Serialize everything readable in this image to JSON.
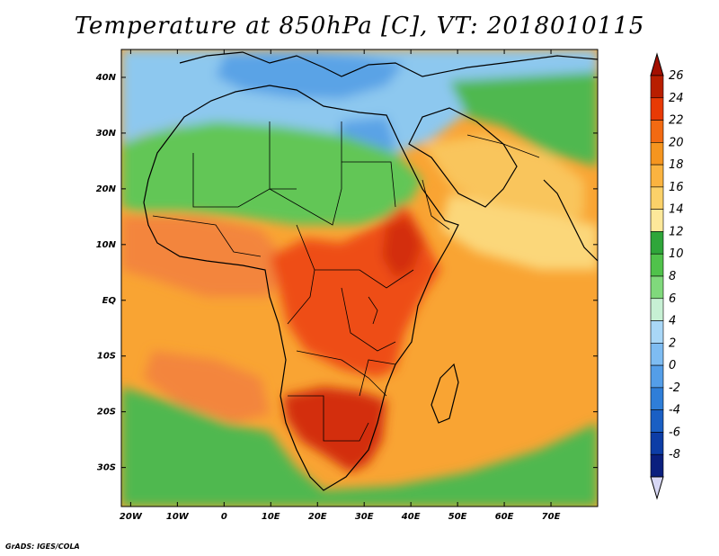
{
  "title": "Temperature at 850hPa [C], VT: 2018010115",
  "footer": "GrADS: IGES/COLA",
  "map": {
    "variable": "Temperature at 850hPa",
    "units": "C",
    "valid_time": "2018010115",
    "lon_range": [
      -22,
      80
    ],
    "lat_range": [
      -37,
      45
    ],
    "lon_ticks": [
      "20W",
      "10W",
      "0",
      "10E",
      "20E",
      "30E",
      "40E",
      "50E",
      "60E",
      "70E"
    ],
    "lon_tick_values": [
      -20,
      -10,
      0,
      10,
      20,
      30,
      40,
      50,
      60,
      70
    ],
    "lat_ticks": [
      "40N",
      "30N",
      "20N",
      "10N",
      "EQ",
      "10S",
      "20S",
      "30S"
    ],
    "lat_tick_values": [
      40,
      30,
      20,
      10,
      0,
      -10,
      -20,
      -30
    ]
  },
  "colorbar": {
    "levels": [
      "26",
      "24",
      "22",
      "20",
      "18",
      "16",
      "14",
      "12",
      "10",
      "8",
      "6",
      "4",
      "2",
      "0",
      "-2",
      "-4",
      "-6",
      "-8"
    ],
    "colors": [
      "#b81e00",
      "#e83a05",
      "#f26a12",
      "#f5951f",
      "#fab340",
      "#fbd169",
      "#fde89a",
      "#2fa63a",
      "#50c24b",
      "#80d97c",
      "#c7f0d4",
      "#a9d7f7",
      "#7ebcf2",
      "#549ee8",
      "#2f7ed8",
      "#1a5fc4",
      "#0d3da6",
      "#0a1f7e"
    ],
    "over_color": "#a30f00",
    "under_color": "#d8d8f5"
  },
  "field_colors": {
    "ocean_base": "#f9a433",
    "ocean_warm": "#f3853c",
    "africa_land": "#f7a537",
    "sahara": "#62c656",
    "north_cool": "#8dc8ef",
    "mediterranean": "#5aa3e6",
    "hot_core": "#ee4e14",
    "very_hot": "#d32d0c",
    "southern_green": "#4fb850",
    "arabia": "#f9c55b",
    "coast_yellow": "#fbd77a"
  }
}
